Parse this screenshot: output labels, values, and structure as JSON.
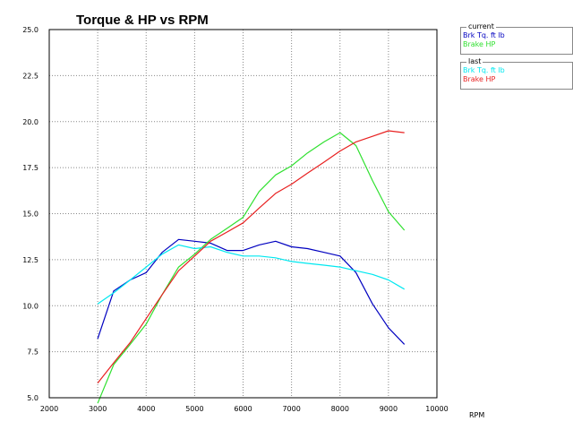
{
  "chart_data": {
    "type": "line",
    "title": "Torque & HP vs RPM",
    "xlabel": "RPM",
    "ylabel": "",
    "xlim": [
      2000,
      10000
    ],
    "ylim": [
      5.0,
      25.0
    ],
    "xticks": [
      2000,
      3000,
      4000,
      5000,
      6000,
      7000,
      8000,
      9000,
      10000
    ],
    "yticks": [
      "5.0",
      "7.5",
      "10.0",
      "12.5",
      "15.0",
      "17.5",
      "20.0",
      "22.5",
      "25.0"
    ],
    "grid": true,
    "series": [
      {
        "group": "current",
        "name": "Brk Tq. ft lb",
        "color": "#0000c0",
        "x": [
          3000,
          3330,
          3670,
          4000,
          4330,
          4670,
          5000,
          5330,
          5670,
          6000,
          6330,
          6670,
          7000,
          7330,
          7670,
          8000,
          8330,
          8670,
          9000,
          9330
        ],
        "y": [
          8.2,
          10.8,
          11.4,
          11.8,
          12.9,
          13.6,
          13.5,
          13.4,
          13.0,
          13.0,
          13.3,
          13.5,
          13.2,
          13.1,
          12.9,
          12.7,
          11.8,
          10.1,
          8.8,
          7.9
        ]
      },
      {
        "group": "current",
        "name": "Brake HP",
        "color": "#30e030",
        "x": [
          3000,
          3330,
          3670,
          4000,
          4330,
          4670,
          5000,
          5330,
          5670,
          6000,
          6330,
          6670,
          7000,
          7330,
          7670,
          8000,
          8330,
          8670,
          9000,
          9330
        ],
        "y": [
          4.7,
          6.8,
          7.9,
          9.0,
          10.6,
          12.1,
          12.8,
          13.6,
          14.2,
          14.8,
          16.2,
          17.1,
          17.6,
          18.3,
          18.9,
          19.4,
          18.7,
          16.8,
          15.1,
          14.1
        ]
      },
      {
        "group": "last",
        "name": "Brk Tq. ft lb",
        "color": "#00e8f0",
        "x": [
          3000,
          3330,
          3670,
          4000,
          4330,
          4670,
          5000,
          5330,
          5670,
          6000,
          6330,
          6670,
          7000,
          7330,
          7670,
          8000,
          8330,
          8670,
          9000,
          9330
        ],
        "y": [
          10.1,
          10.7,
          11.4,
          12.1,
          12.8,
          13.3,
          13.1,
          13.2,
          12.9,
          12.7,
          12.7,
          12.6,
          12.4,
          12.3,
          12.2,
          12.1,
          11.9,
          11.7,
          11.4,
          10.9
        ]
      },
      {
        "group": "last",
        "name": "Brake HP",
        "color": "#e82020",
        "x": [
          3000,
          3330,
          3670,
          4000,
          4330,
          4670,
          5000,
          5330,
          5670,
          6000,
          6330,
          6670,
          7000,
          7330,
          7670,
          8000,
          8330,
          8670,
          9000,
          9330
        ],
        "y": [
          5.8,
          6.9,
          8.0,
          9.3,
          10.6,
          11.9,
          12.7,
          13.5,
          14.0,
          14.5,
          15.3,
          16.1,
          16.6,
          17.2,
          17.8,
          18.4,
          18.9,
          19.2,
          19.5,
          19.4
        ]
      }
    ]
  },
  "legend": {
    "current": {
      "caption": "current",
      "entries": [
        {
          "label": "Brk Tq. ft lb",
          "color": "#0000c0"
        },
        {
          "label": "Brake HP",
          "color": "#30e030"
        }
      ]
    },
    "last": {
      "caption": "last",
      "entries": [
        {
          "label": "Brk Tq. ft lb",
          "color": "#00e8f0"
        },
        {
          "label": "Brake HP",
          "color": "#e82020"
        }
      ]
    }
  }
}
